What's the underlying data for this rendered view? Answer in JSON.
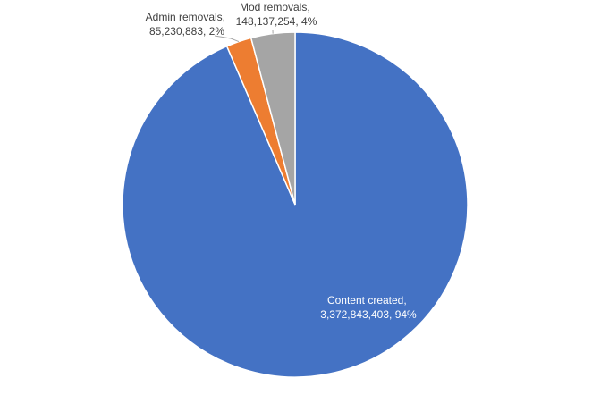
{
  "chart_data": {
    "type": "pie",
    "start_angle_deg": 0,
    "direction": "clockwise",
    "slices": [
      {
        "name": "Content created",
        "value": 3372843403,
        "percent": "94%",
        "color": "#4472C4",
        "label_line1": "Content created,",
        "label_line2": "3,372,843,403, 94%"
      },
      {
        "name": "Admin removals",
        "value": 85230883,
        "percent": "2%",
        "color": "#ED7D31",
        "label_line1": "Admin removals,",
        "label_line2": "85,230,883, 2%"
      },
      {
        "name": "Mod removals",
        "value": 148137254,
        "percent": "4%",
        "color": "#A5A5A5",
        "label_line1": "Mod removals,",
        "label_line2": "148,137,254, 4%"
      }
    ]
  }
}
